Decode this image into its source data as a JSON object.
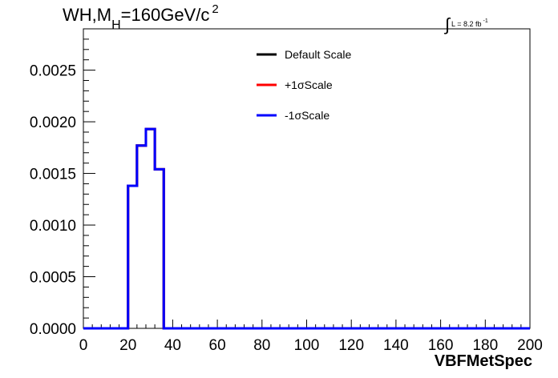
{
  "title": {
    "prefix": "WH,M",
    "subscript": "H",
    "suffix": "=160GeV/c",
    "superscript": "2"
  },
  "luminosity": {
    "integral_sign": "∫",
    "text": "L = 8.2 fb",
    "superscript": "-1"
  },
  "chart_data": {
    "type": "histogram",
    "xlabel": "VBFMetSpec",
    "ylabel": "",
    "xlim": [
      0,
      200
    ],
    "ylim": [
      0,
      0.0029
    ],
    "x_ticks": [
      "0",
      "20",
      "40",
      "60",
      "80",
      "100",
      "120",
      "140",
      "160",
      "180",
      "200"
    ],
    "y_ticks": [
      "0.0000",
      "0.0005",
      "0.0010",
      "0.0015",
      "0.0020",
      "0.0025"
    ],
    "x_tick_values": [
      0,
      20,
      40,
      60,
      80,
      100,
      120,
      140,
      160,
      180,
      200
    ],
    "y_tick_values": [
      0,
      0.0005,
      0.001,
      0.0015,
      0.002,
      0.0025
    ],
    "bin_edges": [
      0,
      4,
      8,
      12,
      16,
      20,
      24,
      28,
      32,
      36,
      40,
      200
    ],
    "series": [
      {
        "name": "Default Scale",
        "color": "#000000",
        "values": [
          0,
          0,
          0,
          0,
          0,
          0.00138,
          0.00177,
          0.00193,
          0.00154,
          0,
          0
        ]
      },
      {
        "name": "+1σScale",
        "color": "#ff0000",
        "values": [
          0,
          0,
          0,
          0,
          0,
          0.00138,
          0.00177,
          0.00193,
          0.00154,
          0,
          0
        ]
      },
      {
        "name": "-1σScale",
        "color": "#0000ff",
        "values": [
          0,
          0,
          0,
          0,
          0,
          0.00138,
          0.00177,
          0.00193,
          0.00154,
          0,
          0
        ]
      }
    ],
    "grid": false,
    "legend_position": "top-center"
  }
}
